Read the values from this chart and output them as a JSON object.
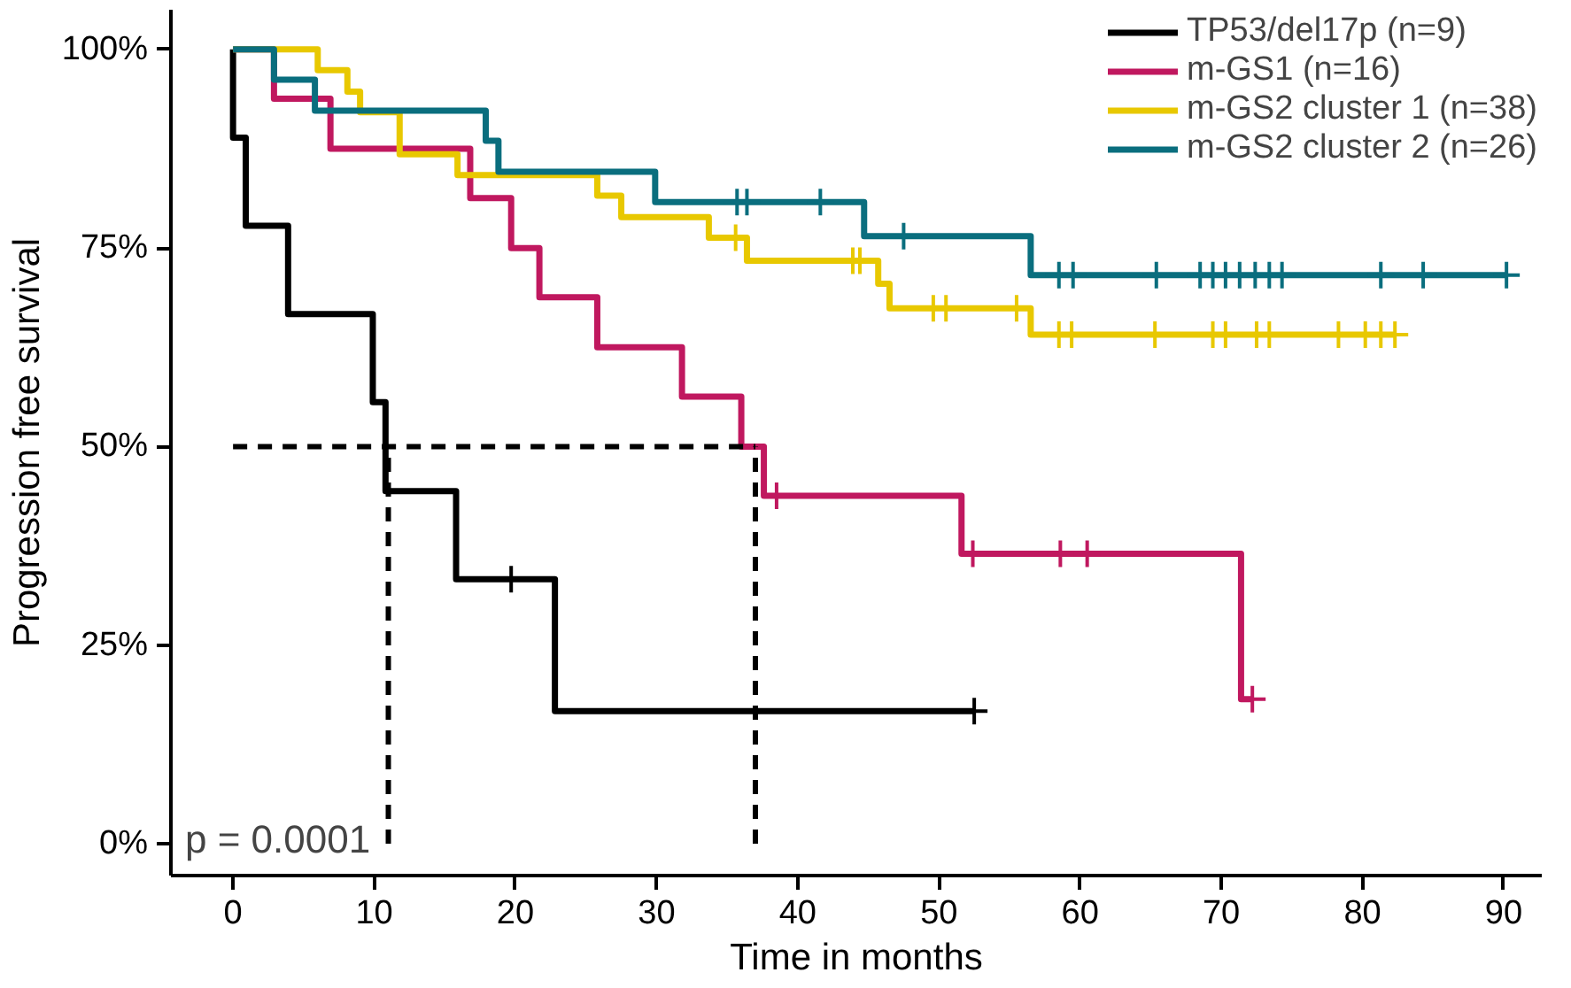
{
  "chart_data": {
    "type": "step",
    "xlabel": "Time in months",
    "ylabel": "Progression free survival",
    "xlim": [
      -4.4,
      92.7
    ],
    "ylim": [
      -4,
      105
    ],
    "xticks": [
      0,
      10,
      20,
      30,
      40,
      50,
      60,
      70,
      80,
      90
    ],
    "yticks": [
      {
        "value": 0,
        "label": "0%"
      },
      {
        "value": 25,
        "label": "25%"
      },
      {
        "value": 50,
        "label": "50%"
      },
      {
        "value": 75,
        "label": "75%"
      },
      {
        "value": 100,
        "label": "100%"
      }
    ],
    "grid": false,
    "legend": "top right",
    "annotations": [
      "p = 0.0001"
    ],
    "series": [
      {
        "name": "TP53/del17p (n=9)",
        "color": "#000000",
        "x": [
          0,
          0,
          0.9,
          3.9,
          9.9,
          10.8,
          15.8,
          22.8,
          52.5
        ],
        "values": [
          100,
          88.9,
          77.8,
          66.7,
          55.6,
          44.4,
          33.3,
          16.7,
          16.7
        ]
      },
      {
        "name": "m-GS1 (n=16)",
        "color": "#c0185f",
        "x": [
          0,
          2.9,
          6.9,
          16.8,
          19.7,
          21.7,
          25.8,
          31.8,
          36.0,
          37.6,
          51.6,
          71.4,
          72.2
        ],
        "values": [
          100,
          93.8,
          87.5,
          81.3,
          75,
          68.8,
          62.5,
          56.3,
          50,
          43.8,
          36.5,
          18.2,
          18.2
        ]
      },
      {
        "name": "m-GS2 cluster 1 (n=38)",
        "color": "#e8c800",
        "x": [
          0,
          6.0,
          8.1,
          9.0,
          11.8,
          15.9,
          25.8,
          27.5,
          33.7,
          36.4,
          45.7,
          46.5,
          56.5,
          82.3
        ],
        "values": [
          100,
          97.4,
          94.7,
          92.1,
          86.8,
          84.2,
          81.6,
          78.9,
          76.3,
          73.4,
          70.5,
          67.4,
          64.1,
          64.1
        ]
      },
      {
        "name": "m-GS2 cluster 2 (n=26)",
        "color": "#0a6e7e",
        "x": [
          0,
          2.9,
          5.8,
          17.9,
          18.8,
          29.9,
          44.7,
          56.5,
          90.2
        ],
        "values": [
          100,
          96.2,
          92.3,
          88.5,
          84.6,
          80.8,
          76.5,
          71.6,
          71.6
        ]
      },
      {
        "type": "scatter",
        "marker": "cross",
        "color": "#000000",
        "x": [
          19.7,
          52.5
        ],
        "values": [
          33.3,
          16.7
        ]
      },
      {
        "type": "scatter",
        "marker": "cross",
        "color": "#c0185f",
        "x": [
          38.5,
          52.4,
          58.6,
          60.5,
          72.2
        ],
        "values": [
          43.8,
          36.5,
          36.5,
          36.5,
          18.2
        ]
      },
      {
        "type": "scatter",
        "marker": "cross",
        "color": "#e8c800",
        "x": [
          35.6,
          43.9,
          44.4,
          49.6,
          50.5,
          55.5,
          58.5,
          59.4,
          65.3,
          69.4,
          70.3,
          72.5,
          73.4,
          78.3,
          80.2,
          81.3,
          82.3
        ],
        "values": [
          76.3,
          73.4,
          73.4,
          67.4,
          67.4,
          67.4,
          64.1,
          64.1,
          64.1,
          64.1,
          64.1,
          64.1,
          64.1,
          64.1,
          64.1,
          64.1,
          64.1
        ]
      },
      {
        "type": "scatter",
        "marker": "cross",
        "color": "#0a6e7e",
        "x": [
          35.7,
          36.4,
          41.6,
          47.5,
          58.5,
          59.5,
          65.4,
          68.5,
          69.4,
          70.3,
          71.3,
          72.4,
          73.4,
          74.3,
          81.3,
          84.3,
          90.2
        ],
        "values": [
          80.8,
          80.8,
          80.8,
          76.5,
          71.6,
          71.6,
          71.6,
          71.6,
          71.6,
          71.6,
          71.6,
          71.6,
          71.6,
          71.6,
          71.6,
          71.6,
          71.6
        ]
      },
      {
        "type": "line",
        "line_style": "dashed",
        "color": "#000000",
        "x": [
          0,
          37
        ],
        "values": [
          50,
          50
        ]
      },
      {
        "type": "line",
        "line_style": "dashed",
        "color": "#000000",
        "x": [
          11,
          11
        ],
        "values": [
          0,
          50
        ]
      },
      {
        "type": "line",
        "line_style": "dashed",
        "color": "#000000",
        "x": [
          37,
          37
        ],
        "values": [
          0,
          50
        ]
      }
    ]
  }
}
